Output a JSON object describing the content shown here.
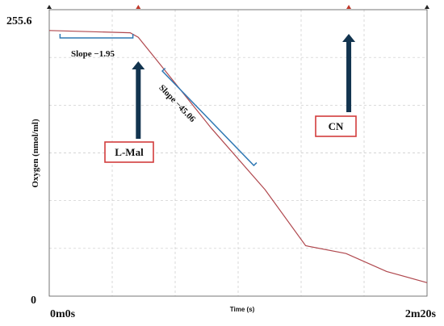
{
  "chart_data": {
    "type": "line",
    "title": "",
    "xlabel": "Time (s)",
    "ylabel": "Oxygen (nmol/ml)",
    "xlim": [
      0,
      140
    ],
    "ylim": [
      0,
      255.6
    ],
    "x_tick_labels": [
      "0m0s",
      "2m20s"
    ],
    "y_tick_labels": [
      "255.6",
      "0"
    ],
    "grid": true,
    "series": [
      {
        "color": "#b0484e",
        "x": [
          0,
          30,
          33,
          40,
          60,
          80,
          95,
          110,
          125,
          140
        ],
        "y": [
          237,
          235,
          231,
          210,
          150,
          95,
          45,
          38,
          22,
          12
        ]
      }
    ],
    "annotations": [
      {
        "type": "arrow",
        "label": "L-Mal",
        "x": 33
      },
      {
        "type": "arrow",
        "label": "CN",
        "x": 111
      },
      {
        "type": "slope",
        "label": "Slope  −1.95",
        "x_start": 4,
        "x_end": 31
      },
      {
        "type": "slope",
        "label": "Slope  −45.06",
        "x_start": 41,
        "x_end": 74
      }
    ],
    "top_markers_x": [
      33,
      111
    ]
  }
}
